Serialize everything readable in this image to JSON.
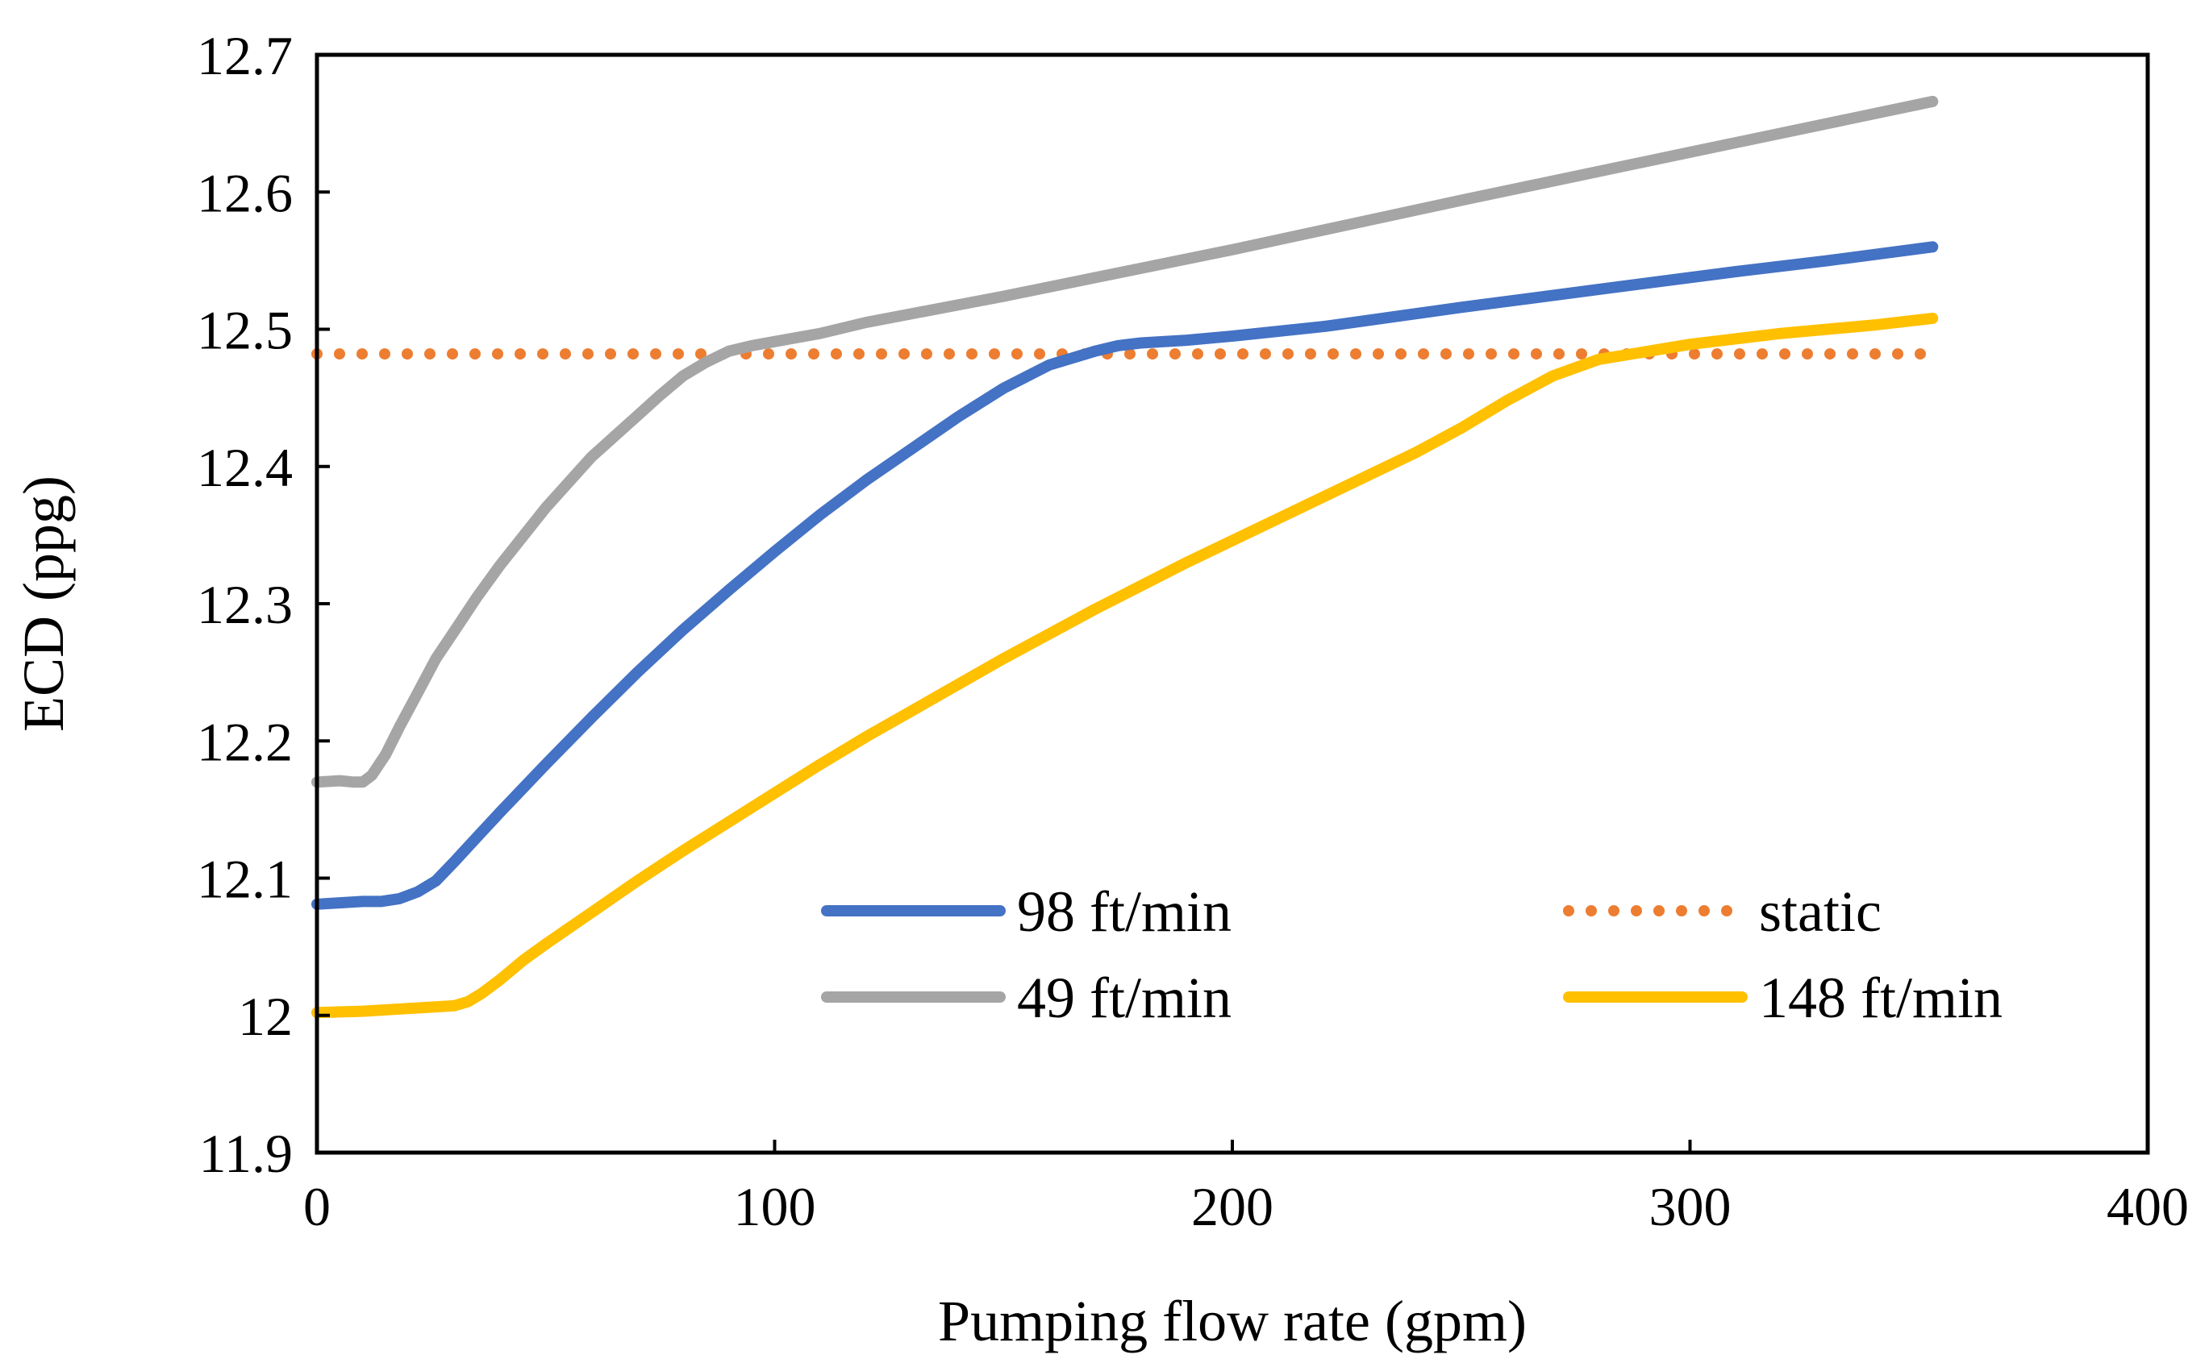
{
  "chart_data": {
    "type": "line",
    "title": "",
    "xlabel": "Pumping flow rate (gpm)",
    "ylabel": "ECD (ppg)",
    "xlim": [
      0,
      400
    ],
    "ylim": [
      11.9,
      12.7
    ],
    "xticks": [
      0,
      100,
      200,
      300,
      400
    ],
    "xtick_labels": [
      "0",
      "100",
      "200",
      "300",
      "400"
    ],
    "yticks": [
      11.9,
      12.0,
      12.1,
      12.2,
      12.3,
      12.4,
      12.5,
      12.6,
      12.7
    ],
    "ytick_labels": [
      "11.9",
      "12",
      "12.1",
      "12.2",
      "12.3",
      "12.4",
      "12.5",
      "12.6",
      "12.7"
    ],
    "grid": false,
    "legend": {
      "placement": "bottom-right, two columns"
    },
    "series": [
      {
        "name": "98 ft/min",
        "color": "#4472C4",
        "style": "solid",
        "x": [
          0,
          5,
          10,
          14,
          18,
          22,
          26,
          30,
          35,
          40,
          50,
          60,
          70,
          80,
          90,
          100,
          110,
          120,
          130,
          140,
          150,
          160,
          170,
          175,
          180,
          190,
          200,
          220,
          250,
          280,
          310,
          330,
          353
        ],
        "y": [
          12.081,
          12.082,
          12.083,
          12.083,
          12.085,
          12.09,
          12.098,
          12.112,
          12.13,
          12.148,
          12.183,
          12.217,
          12.25,
          12.281,
          12.31,
          12.338,
          12.365,
          12.39,
          12.413,
          12.436,
          12.457,
          12.474,
          12.484,
          12.488,
          12.49,
          12.492,
          12.495,
          12.502,
          12.516,
          12.529,
          12.542,
          12.55,
          12.56
        ]
      },
      {
        "name": "49 ft/min",
        "color": "#A5A5A5",
        "style": "solid",
        "x": [
          0,
          5,
          8,
          10,
          12,
          15,
          18,
          22,
          26,
          30,
          35,
          40,
          50,
          60,
          70,
          75,
          80,
          85,
          90,
          95,
          100,
          110,
          120,
          150,
          200,
          250,
          300,
          353
        ],
        "y": [
          12.17,
          12.171,
          12.17,
          12.17,
          12.175,
          12.19,
          12.21,
          12.235,
          12.26,
          12.28,
          12.305,
          12.328,
          12.37,
          12.407,
          12.437,
          12.452,
          12.466,
          12.476,
          12.484,
          12.488,
          12.491,
          12.497,
          12.505,
          12.524,
          12.558,
          12.594,
          12.629,
          12.666
        ]
      },
      {
        "name": "static",
        "color": "#ED7D31",
        "style": "dotted",
        "x": [
          0,
          353
        ],
        "y": [
          12.482,
          12.482
        ]
      },
      {
        "name": "148 ft/min",
        "color": "#FFC000",
        "style": "solid",
        "x": [
          0,
          10,
          20,
          30,
          33,
          36,
          40,
          45,
          50,
          60,
          70,
          80,
          90,
          100,
          110,
          120,
          130,
          140,
          150,
          160,
          170,
          180,
          190,
          200,
          220,
          240,
          250,
          260,
          270,
          280,
          300,
          320,
          340,
          353
        ],
        "y": [
          12.002,
          12.003,
          12.005,
          12.007,
          12.01,
          12.016,
          12.026,
          12.04,
          12.052,
          12.075,
          12.098,
          12.12,
          12.141,
          12.162,
          12.183,
          12.203,
          12.222,
          12.241,
          12.26,
          12.278,
          12.296,
          12.313,
          12.33,
          12.346,
          12.378,
          12.41,
          12.428,
          12.448,
          12.466,
          12.478,
          12.489,
          12.497,
          12.503,
          12.508
        ]
      }
    ]
  }
}
